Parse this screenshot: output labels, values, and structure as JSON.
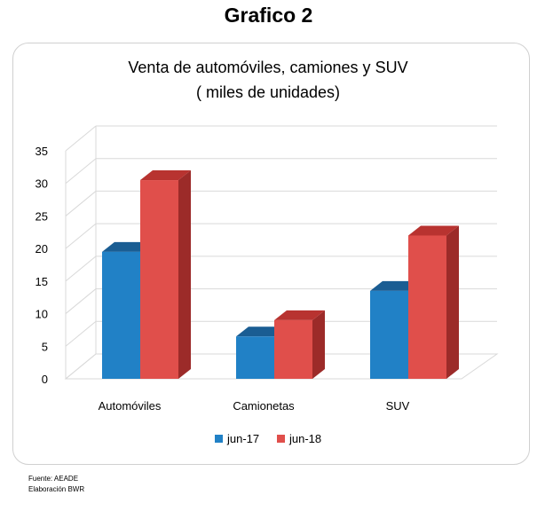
{
  "heading": "Grafico  2",
  "notes": {
    "source": "Fuente: AEADE",
    "elaboration": "Elaboración BWR"
  },
  "colors": {
    "jun17_front": "#2181c6",
    "jun17_top": "#1a5d93",
    "jun17_side": "#175185",
    "jun18_front": "#e04f4b",
    "jun18_top": "#b83330",
    "jun18_side": "#9c2b29",
    "grid": "#d9d9d9"
  },
  "chart_data": {
    "type": "bar",
    "title": [
      "Venta de automóviles, camiones y SUV",
      "( miles de unidades)"
    ],
    "categories": [
      "Automóviles",
      "Camionetas",
      "SUV"
    ],
    "series": [
      {
        "name": "jun-17",
        "values": [
          19.5,
          6.5,
          13.5
        ]
      },
      {
        "name": "jun-18",
        "values": [
          30.5,
          9.0,
          22.0
        ]
      }
    ],
    "y_ticks": [
      "0",
      "5",
      "10",
      "15",
      "20",
      "25",
      "30",
      "35"
    ],
    "ylim": [
      0,
      35
    ],
    "grid": true,
    "legend": "bottom",
    "style": "3d-clustered-bar"
  }
}
